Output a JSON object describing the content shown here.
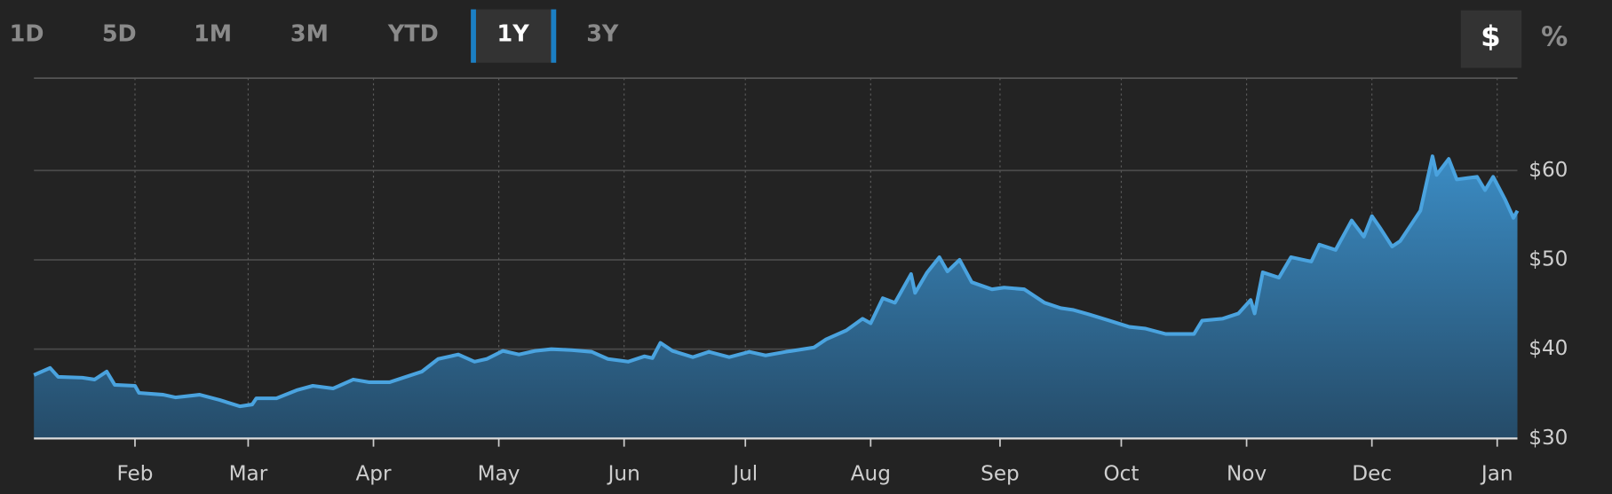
{
  "range_buttons": [
    "1D",
    "5D",
    "1M",
    "3M",
    "YTD",
    "1Y",
    "3Y"
  ],
  "unit_buttons": [
    "$",
    "%"
  ],
  "chart_data": {
    "type": "area",
    "x": [
      0,
      4,
      6,
      12,
      15,
      18,
      20,
      25,
      26,
      32,
      35,
      41,
      46,
      51,
      54,
      55,
      60,
      65,
      69,
      74,
      79,
      83,
      88,
      92,
      96,
      100,
      105,
      109,
      112,
      116,
      120,
      124,
      128,
      133,
      138,
      142,
      147,
      151,
      153,
      155,
      158,
      163,
      167,
      172,
      177,
      181,
      186,
      193,
      196,
      201,
      205,
      207,
      210,
      213,
      217,
      218,
      221,
      224,
      226,
      229,
      232,
      237,
      240,
      245,
      250,
      254,
      257,
      261,
      266,
      271,
      275,
      280,
      287,
      289,
      294,
      298,
      301,
      302,
      304,
      308,
      311,
      316,
      318,
      322,
      326,
      329,
      331,
      333,
      336,
      338,
      343,
      346,
      347,
      350,
      352,
      357,
      359,
      361,
      364,
      366,
      367
    ],
    "values": [
      37.1,
      37.9,
      36.9,
      36.8,
      36.6,
      37.5,
      36.0,
      35.9,
      35.1,
      34.9,
      34.6,
      34.9,
      34.3,
      33.6,
      33.8,
      34.5,
      34.5,
      35.4,
      35.9,
      35.6,
      36.6,
      36.3,
      36.3,
      36.9,
      37.5,
      38.9,
      39.4,
      38.6,
      38.9,
      39.8,
      39.4,
      39.8,
      40.0,
      39.9,
      39.7,
      38.9,
      38.6,
      39.2,
      39.0,
      40.7,
      39.8,
      39.1,
      39.7,
      39.1,
      39.7,
      39.3,
      39.7,
      40.2,
      41.1,
      42.1,
      43.4,
      42.9,
      45.7,
      45.2,
      48.4,
      46.3,
      48.6,
      50.3,
      48.7,
      50.0,
      47.5,
      46.7,
      46.9,
      46.7,
      45.2,
      44.6,
      44.4,
      43.9,
      43.2,
      42.5,
      42.3,
      41.7,
      41.7,
      43.2,
      43.4,
      44.0,
      45.5,
      44.0,
      48.6,
      48.0,
      50.3,
      49.8,
      51.7,
      51.1,
      54.4,
      52.6,
      54.9,
      53.6,
      51.5,
      52.1,
      55.5,
      61.6,
      59.5,
      61.3,
      59.0,
      59.3,
      57.8,
      59.3,
      56.7,
      54.7,
      55.5
    ],
    "color": "#4aa3df",
    "xlim": [
      0,
      367
    ],
    "xticks": [
      {
        "value": 25,
        "label": "Feb"
      },
      {
        "value": 53,
        "label": "Mar"
      },
      {
        "value": 84,
        "label": "Apr"
      },
      {
        "value": 115,
        "label": "May"
      },
      {
        "value": 146,
        "label": "Jun"
      },
      {
        "value": 176,
        "label": "Jul"
      },
      {
        "value": 207,
        "label": "Aug"
      },
      {
        "value": 239,
        "label": "Sep"
      },
      {
        "value": 269,
        "label": "Oct"
      },
      {
        "value": 300,
        "label": "Nov"
      },
      {
        "value": 331,
        "label": "Dec"
      },
      {
        "value": 362,
        "label": "Jan"
      }
    ],
    "ylim": [
      30,
      70
    ],
    "yticks": [
      {
        "value": 30,
        "label": "$30"
      },
      {
        "value": 40,
        "label": "$40"
      },
      {
        "value": 50,
        "label": "$50"
      },
      {
        "value": 60,
        "label": "$60"
      }
    ],
    "grid": true
  }
}
